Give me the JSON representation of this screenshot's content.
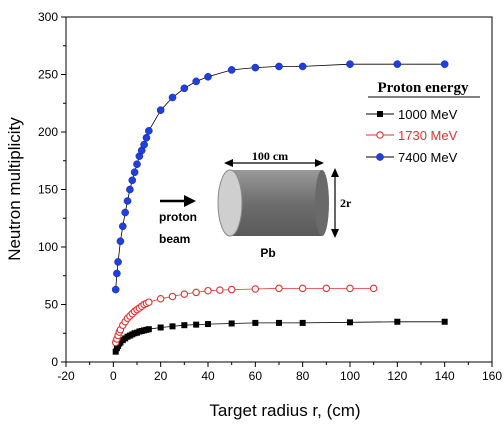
{
  "chart_data": {
    "type": "line",
    "xlabel": "Target radius r, (cm)",
    "ylabel": "Neutron multiplicity",
    "xlim": [
      -20,
      160
    ],
    "ylim": [
      0,
      300
    ],
    "xticks": [
      -20,
      0,
      20,
      40,
      60,
      80,
      100,
      120,
      140,
      160
    ],
    "yticks": [
      0,
      50,
      100,
      150,
      200,
      250,
      300
    ],
    "legend_title": "Proton energy",
    "legend_position": "right",
    "series": [
      {
        "name": "1000 MeV",
        "marker": "square-filled",
        "color": "#000000",
        "x": [
          1,
          1.5,
          2,
          2.5,
          3,
          4,
          5,
          6,
          7,
          8,
          9,
          10,
          11,
          12,
          13,
          14,
          15,
          20,
          25,
          30,
          35,
          40,
          50,
          60,
          70,
          80,
          100,
          120,
          140
        ],
        "y": [
          9,
          12,
          14,
          16,
          17,
          19,
          20.5,
          22,
          23,
          24,
          25,
          25.5,
          26.5,
          27,
          27.5,
          28,
          28.5,
          30,
          31,
          32,
          32.5,
          33,
          33.5,
          34,
          34,
          34,
          34.5,
          35,
          35
        ]
      },
      {
        "name": "1730 MeV",
        "marker": "circle-open",
        "color": "#e03030",
        "x": [
          1,
          1.5,
          2,
          2.5,
          3,
          4,
          5,
          6,
          7,
          8,
          9,
          10,
          11,
          12,
          13,
          14,
          15,
          20,
          25,
          30,
          35,
          40,
          45,
          50,
          60,
          70,
          80,
          90,
          100,
          110
        ],
        "y": [
          17,
          20,
          23,
          26,
          28,
          32,
          35,
          38,
          40,
          42,
          44,
          45.5,
          47,
          48.5,
          50,
          51,
          52,
          55,
          57,
          59,
          60.5,
          62,
          62.5,
          63,
          63.5,
          64,
          64,
          64,
          64,
          64
        ]
      },
      {
        "name": "7400 MeV",
        "marker": "circle-filled",
        "color": "#1f3fe0",
        "x": [
          1,
          1.5,
          2,
          3,
          4,
          5,
          6,
          7,
          8,
          9,
          10,
          11,
          12,
          13,
          14,
          15,
          20,
          25,
          30,
          35,
          40,
          50,
          60,
          70,
          80,
          100,
          120,
          140
        ],
        "y": [
          63,
          77,
          87,
          105,
          118,
          130,
          140,
          150,
          158,
          165,
          172,
          179,
          184,
          189,
          195,
          201,
          219,
          230,
          238,
          244,
          248,
          254,
          256,
          257,
          257,
          259,
          259,
          259
        ]
      }
    ],
    "inset": {
      "label_length": "100 cm",
      "label_radius": "2r",
      "label_beam_line1": "proton",
      "label_beam_line2": "beam",
      "label_material": "Pb"
    }
  }
}
